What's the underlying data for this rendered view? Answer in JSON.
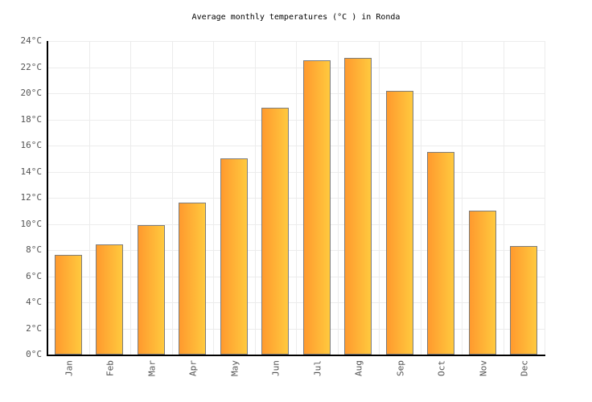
{
  "title": "Average monthly temperatures (°C ) in Ronda",
  "chart_data": {
    "type": "bar",
    "categories": [
      "Jan",
      "Feb",
      "Mar",
      "Apr",
      "May",
      "Jun",
      "Jul",
      "Aug",
      "Sep",
      "Oct",
      "Nov",
      "Dec"
    ],
    "values": [
      7.6,
      8.4,
      9.9,
      11.6,
      15.0,
      18.9,
      22.5,
      22.7,
      20.2,
      15.5,
      11.0,
      8.3
    ],
    "title": "Average monthly temperatures (°C ) in Ronda",
    "xlabel": "",
    "ylabel": "",
    "ylim": [
      0,
      24
    ],
    "ytick_step": 2,
    "y_ticks": [
      "0°C",
      "2°C",
      "4°C",
      "6°C",
      "8°C",
      "10°C",
      "12°C",
      "14°C",
      "16°C",
      "18°C",
      "20°C",
      "22°C",
      "24°C"
    ],
    "grid": "on",
    "legend": "none",
    "colors": {
      "bar_gradient_left": "#ff9a2e",
      "bar_gradient_right": "#ffc93e",
      "bar_border": "#7d7d7d",
      "gridline": "#ececec",
      "axis": "#000000",
      "tick_label": "#545454",
      "title": "#000000",
      "background": "#ffffff"
    }
  }
}
